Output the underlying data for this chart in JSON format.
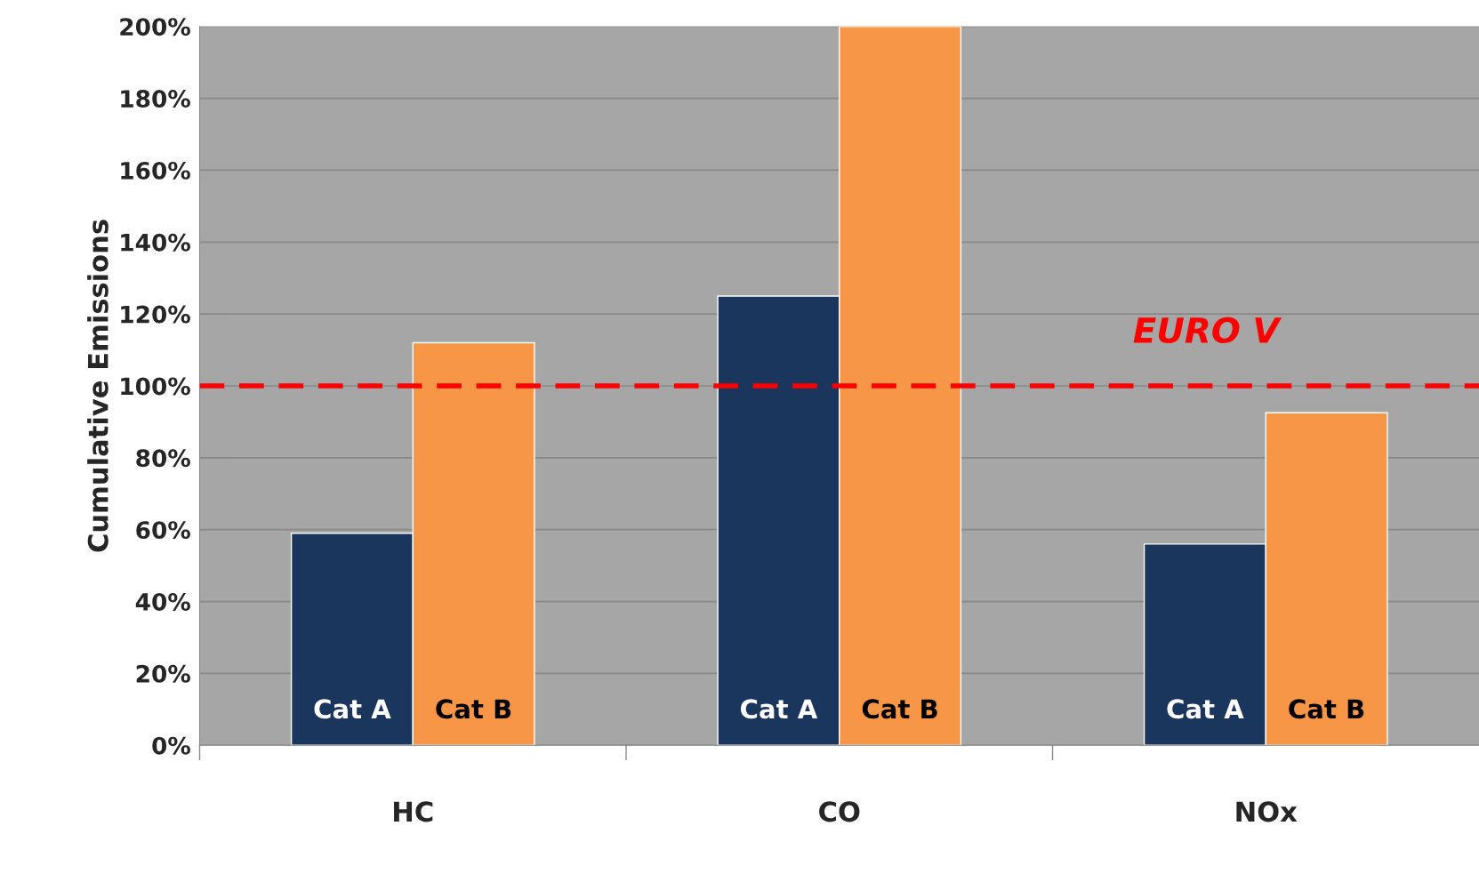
{
  "chart_data": {
    "type": "bar",
    "ylabel": "Cumulative Emissions",
    "categories": [
      "HC",
      "CO",
      "NOx"
    ],
    "series": [
      {
        "name": "Cat A",
        "color": "#1a365d",
        "values": [
          59,
          125,
          56
        ]
      },
      {
        "name": "Cat B",
        "color": "#f79646",
        "values": [
          112,
          200,
          92.5
        ]
      }
    ],
    "ylim": [
      0,
      200
    ],
    "yticks": [
      {
        "value": 0,
        "label": "0%"
      },
      {
        "value": 20,
        "label": "20%"
      },
      {
        "value": 40,
        "label": "40%"
      },
      {
        "value": 60,
        "label": "60%"
      },
      {
        "value": 80,
        "label": "80%"
      },
      {
        "value": 100,
        "label": "100%"
      },
      {
        "value": 120,
        "label": "120%"
      },
      {
        "value": 140,
        "label": "140%"
      },
      {
        "value": 160,
        "label": "160%"
      },
      {
        "value": 180,
        "label": "180%"
      },
      {
        "value": 200,
        "label": "200%"
      }
    ],
    "grid": "y",
    "ref_lines": [
      {
        "axis": "y",
        "value": 100,
        "label": "EURO V",
        "color": "#ff0000",
        "line_style": "dashed"
      }
    ]
  }
}
